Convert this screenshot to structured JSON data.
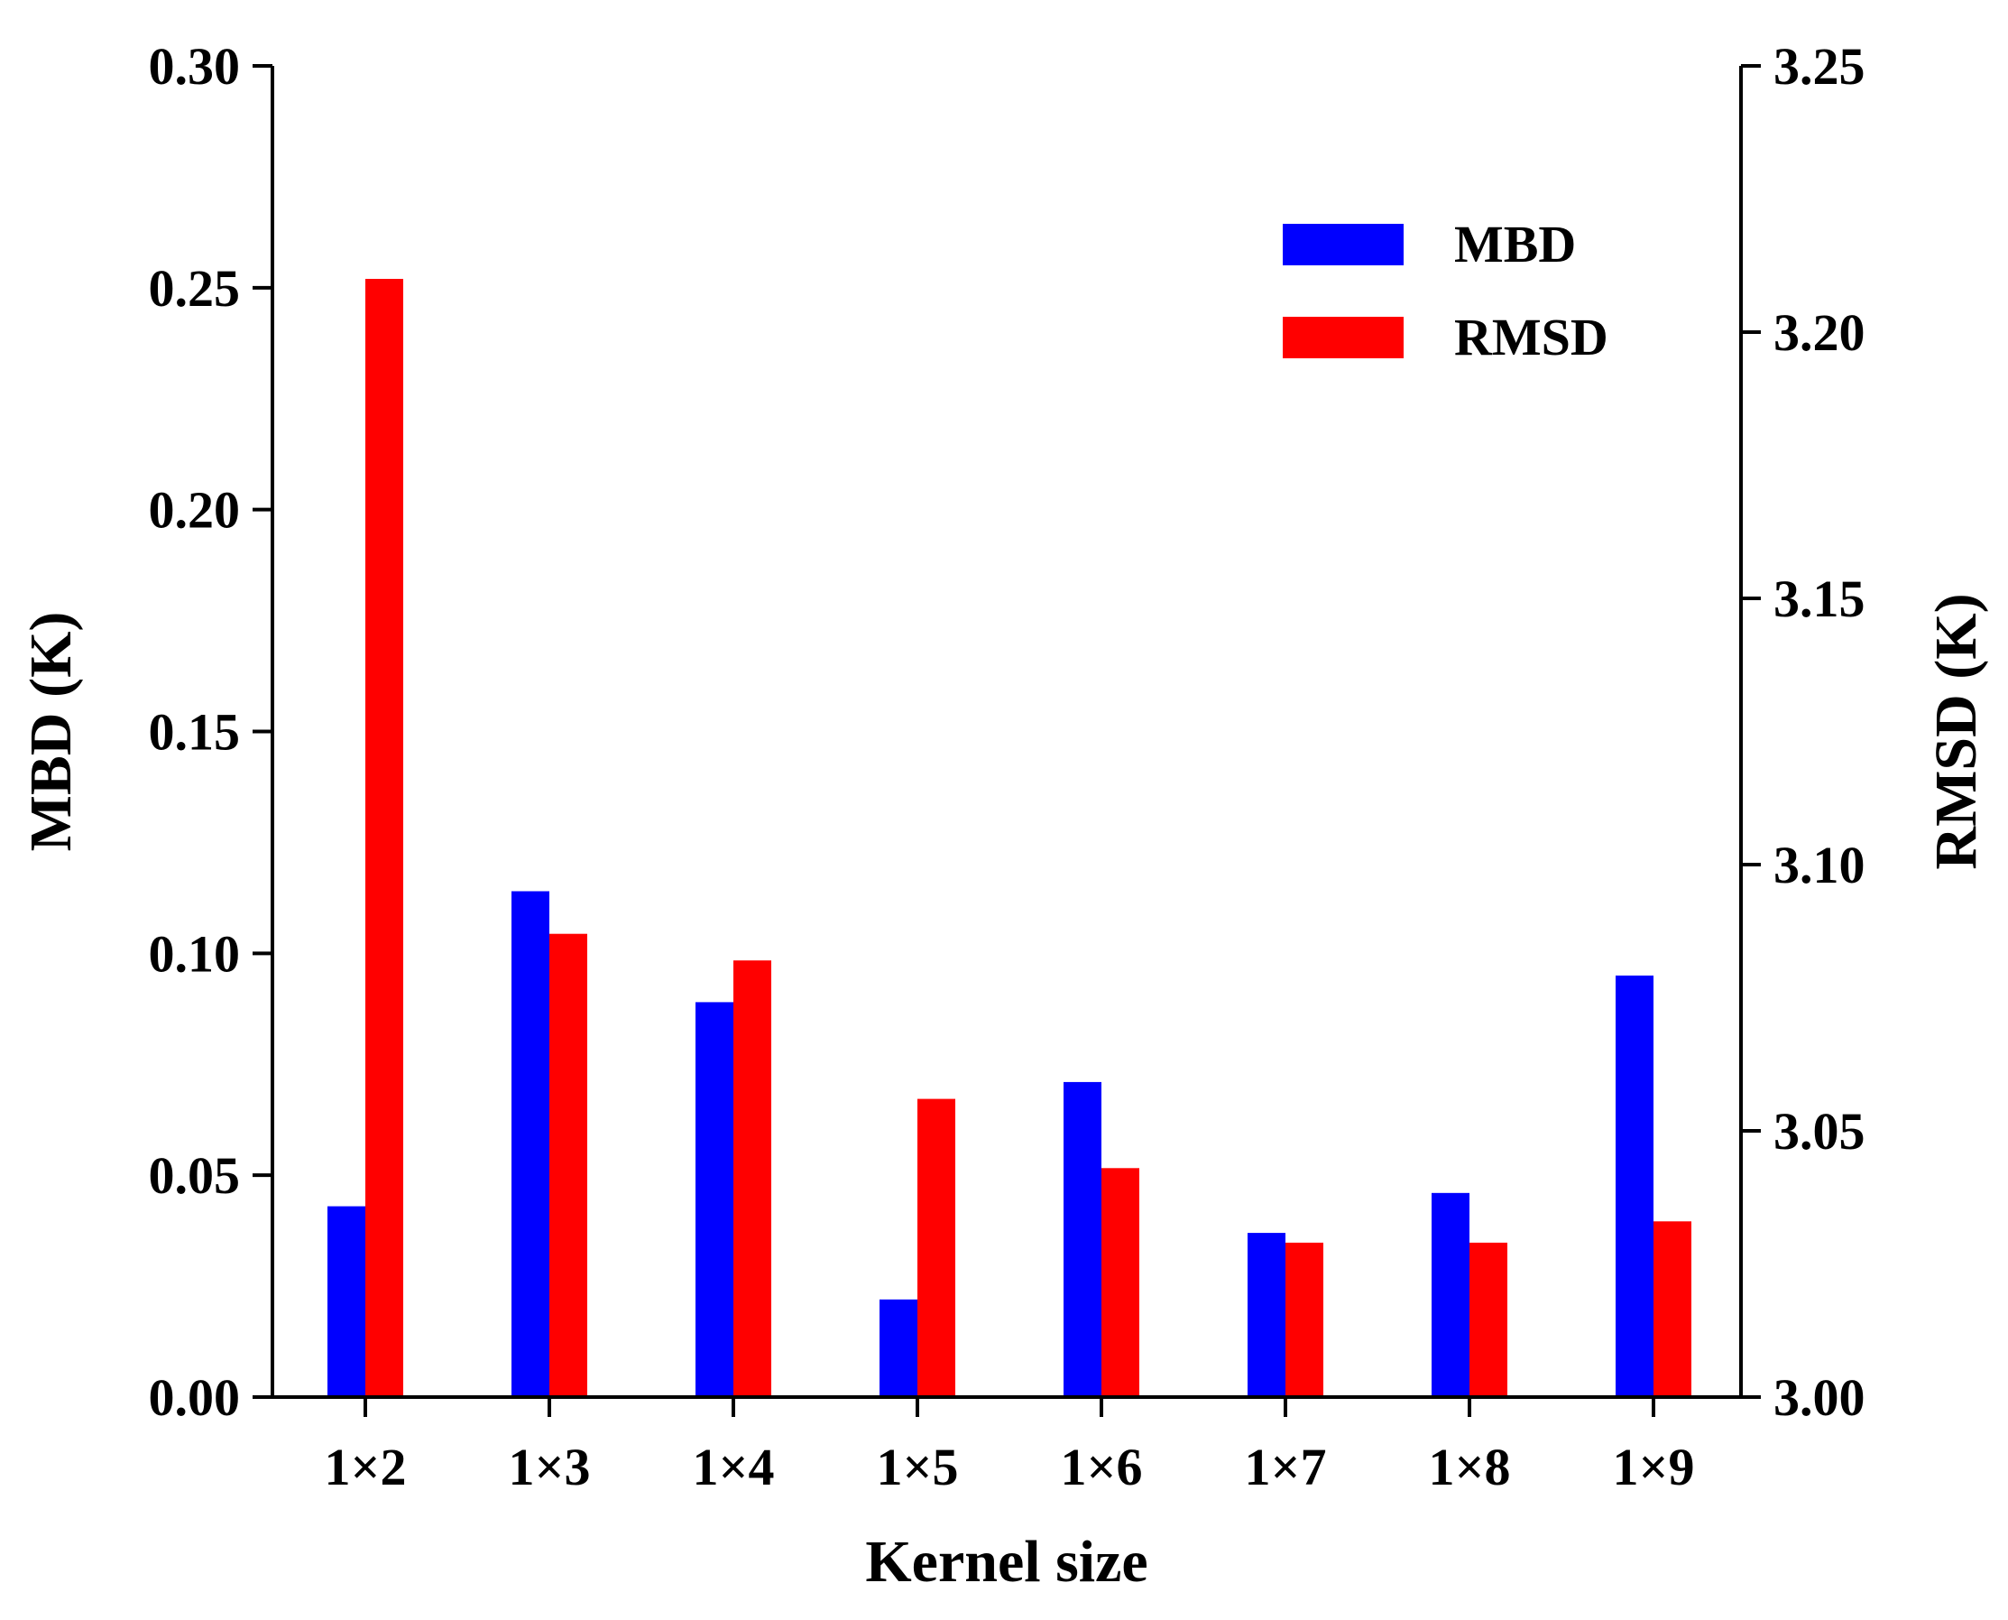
{
  "chart_data": {
    "type": "bar",
    "title": "",
    "xlabel": "Kernel size",
    "ylabel": "MBD (K)",
    "y2label": "RMSD (K)",
    "categories": [
      "1×2",
      "1×3",
      "1×4",
      "1×5",
      "1×6",
      "1×7",
      "1×8",
      "1×9"
    ],
    "ylim": [
      0,
      0.3
    ],
    "y2lim": [
      3.0,
      3.25
    ],
    "yticks": [
      "0.00",
      "0.05",
      "0.10",
      "0.15",
      "0.20",
      "0.25",
      "0.30"
    ],
    "y2ticks": [
      "3.00",
      "3.05",
      "3.10",
      "3.15",
      "3.20",
      "3.25"
    ],
    "series": [
      {
        "name": "MBD",
        "axis": "left",
        "color": "#0000ff",
        "values": [
          0.043,
          0.114,
          0.089,
          0.022,
          0.071,
          0.037,
          0.046,
          0.095
        ]
      },
      {
        "name": "RMSD",
        "axis": "right",
        "color": "#ff0000",
        "values": [
          3.21,
          3.087,
          3.082,
          3.056,
          3.043,
          3.029,
          3.029,
          3.033
        ]
      }
    ],
    "legend": {
      "position": "top-right",
      "entries": [
        "MBD",
        "RMSD"
      ]
    },
    "grid": false
  }
}
